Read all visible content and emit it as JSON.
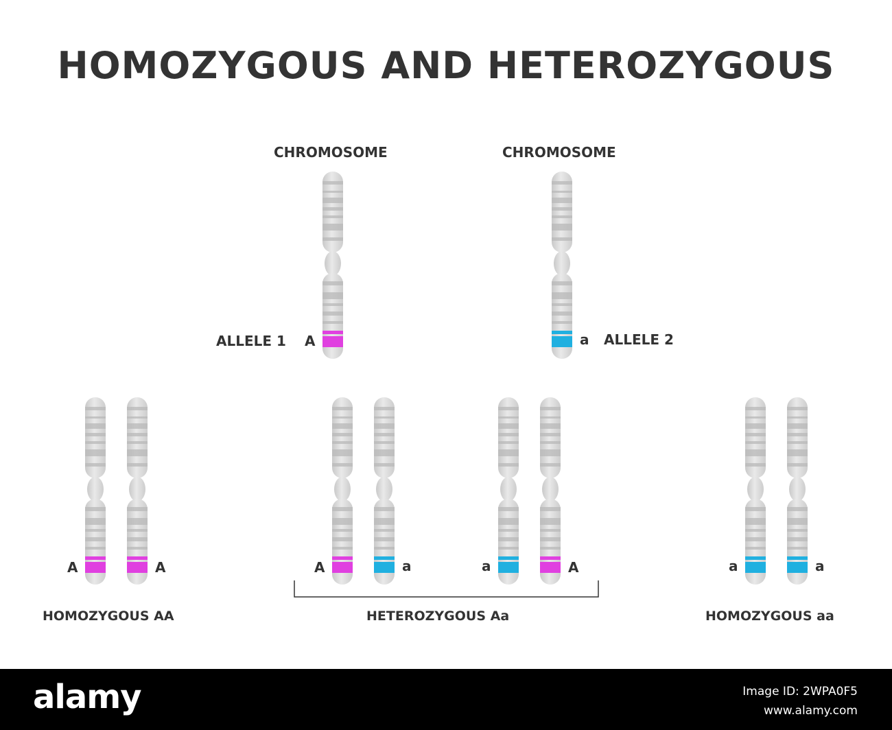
{
  "title": "HOMOZYGOUS AND HETEROZYGOUS",
  "top": {
    "chromosome_left_label": "CHROMOSOME",
    "chromosome_right_label": "CHROMOSOME",
    "allele1_label": "ALLELE 1",
    "allele1_letter": "A",
    "allele2_letter": "a",
    "allele2_label": "ALLELE 2"
  },
  "groups": {
    "homozygous_AA": {
      "left_letter": "A",
      "right_letter": "A",
      "caption": "HOMOZYGOUS AA"
    },
    "heterozygous": {
      "pair1_left_letter": "A",
      "pair1_right_letter": "a",
      "pair2_left_letter": "a",
      "pair2_right_letter": "A",
      "caption": "HETEROZYGOUS Aa"
    },
    "homozygous_aa": {
      "left_letter": "a",
      "right_letter": "a",
      "caption": "HOMOZYGOUS aa"
    }
  },
  "colors": {
    "dominant_allele": "#e040e0",
    "recessive_allele": "#20b0e0",
    "chromosome_body": "#d9d9d9",
    "chromosome_band": "#b8b8b8",
    "text": "#333333"
  },
  "footer": {
    "brand": "alamy",
    "image_id": "Image ID: 2WPA0F5",
    "url": "www.alamy.com"
  }
}
